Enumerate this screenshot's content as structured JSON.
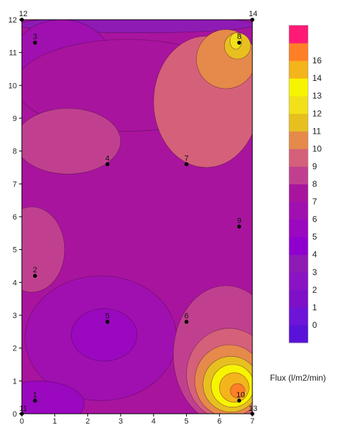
{
  "chart_data": {
    "type": "heatmap",
    "subtype": "filled-contour",
    "xlim": [
      0,
      7
    ],
    "ylim": [
      0,
      12
    ],
    "x_ticks": [
      0,
      1,
      2,
      3,
      4,
      5,
      6,
      7
    ],
    "y_ticks": [
      0,
      1,
      2,
      3,
      4,
      5,
      6,
      7,
      8,
      9,
      10,
      11,
      12
    ],
    "x_tick_labels": [
      "0",
      "1",
      "2",
      "3",
      "4",
      "5",
      "6",
      "7"
    ],
    "y_tick_labels": [
      "0",
      "1",
      "2",
      "3",
      "4",
      "5",
      "6",
      "7",
      "8",
      "9",
      "10",
      "11",
      "12"
    ],
    "points": [
      {
        "label": "1",
        "x": 0.4,
        "y": 0.4
      },
      {
        "label": "2",
        "x": 0.4,
        "y": 4.2
      },
      {
        "label": "3",
        "x": 0.4,
        "y": 11.3
      },
      {
        "label": "4",
        "x": 2.6,
        "y": 7.6
      },
      {
        "label": "5",
        "x": 2.6,
        "y": 2.8
      },
      {
        "label": "6",
        "x": 5.0,
        "y": 2.8
      },
      {
        "label": "7",
        "x": 5.0,
        "y": 7.6
      },
      {
        "label": "8",
        "x": 6.6,
        "y": 11.3
      },
      {
        "label": "9",
        "x": 6.6,
        "y": 5.7
      },
      {
        "label": "10",
        "x": 6.6,
        "y": 0.4
      },
      {
        "label": "11",
        "x": 0.0,
        "y": 0.0
      },
      {
        "label": "12",
        "x": 0.0,
        "y": 12.0
      },
      {
        "label": "13",
        "x": 7.0,
        "y": 0.0
      },
      {
        "label": "14",
        "x": 7.0,
        "y": 12.0
      }
    ],
    "colorbar": {
      "title": "Flux (l/m2/min)",
      "levels": [
        "0",
        "1",
        "2",
        "3",
        "4",
        "5",
        "6",
        "7",
        "8",
        "9",
        "10",
        "11",
        "12",
        "13",
        "14",
        "16"
      ],
      "colors": [
        "#5a12d8",
        "#6d14d8",
        "#7e10c8",
        "#8a14c4",
        "#8e1bb4",
        "#8f00cf",
        "#9a08bf",
        "#a010b0",
        "#a8149e",
        "#c0408f",
        "#d5607a",
        "#e58a4a",
        "#e7c020",
        "#f2e11a",
        "#f7f400",
        "#f4b41c",
        "#ff7f27",
        "#ff1a76"
      ]
    },
    "regions": [
      {
        "level": "7",
        "shape": "background"
      },
      {
        "level": "3",
        "shape": "top-edge band",
        "cx": 3.5,
        "cy": 11.85,
        "rx": 3.6,
        "ry": 0.25
      },
      {
        "level": "6",
        "shape": "top-left lobe",
        "cx": 1.2,
        "cy": 10.8,
        "rx": 1.5,
        "ry": 1.2
      },
      {
        "level": "7",
        "shape": "upper band",
        "cx": 3.2,
        "cy": 10.0,
        "rx": 3.4,
        "ry": 1.4
      },
      {
        "level": "8",
        "shape": "center-left blob",
        "cx": 1.4,
        "cy": 8.3,
        "rx": 1.6,
        "ry": 1.0
      },
      {
        "level": "9",
        "shape": "upper-right blob",
        "cx": 5.6,
        "cy": 9.5,
        "rx": 1.6,
        "ry": 2.0
      },
      {
        "level": "10",
        "shape": "upper-right core",
        "cx": 6.2,
        "cy": 10.8,
        "rx": 0.9,
        "ry": 0.9
      },
      {
        "level": "11",
        "shape": "upper-right inner",
        "cx": 6.55,
        "cy": 11.2,
        "rx": 0.4,
        "ry": 0.4
      },
      {
        "level": "12",
        "shape": "upper-right peak",
        "cx": 6.5,
        "cy": 11.35,
        "rx": 0.18,
        "ry": 0.25
      },
      {
        "level": "8",
        "shape": "left blob",
        "cx": 0.3,
        "cy": 5.0,
        "rx": 1.0,
        "ry": 1.3
      },
      {
        "level": "6",
        "shape": "lower-left region",
        "cx": 2.4,
        "cy": 2.3,
        "rx": 2.3,
        "ry": 1.9
      },
      {
        "level": "5",
        "shape": "low around point 5",
        "cx": 2.5,
        "cy": 2.4,
        "rx": 1.0,
        "ry": 0.8
      },
      {
        "level": "5",
        "shape": "bottom-left corner",
        "cx": 0.5,
        "cy": 0.3,
        "rx": 1.4,
        "ry": 0.7
      },
      {
        "level": "8",
        "shape": "lower-right region",
        "cx": 6.2,
        "cy": 1.8,
        "rx": 1.6,
        "ry": 2.1
      },
      {
        "level": "9",
        "shape": "lower-right ring",
        "cx": 6.3,
        "cy": 1.2,
        "rx": 1.3,
        "ry": 1.4
      },
      {
        "level": "10",
        "shape": "lower-right ring",
        "cx": 6.3,
        "cy": 1.0,
        "rx": 1.05,
        "ry": 1.1
      },
      {
        "level": "11",
        "shape": "lower-right ring",
        "cx": 6.35,
        "cy": 0.9,
        "rx": 0.85,
        "ry": 0.85
      },
      {
        "level": "13",
        "shape": "lower-right ring",
        "cx": 6.4,
        "cy": 0.85,
        "rx": 0.65,
        "ry": 0.65
      },
      {
        "level": "14",
        "shape": "lower-right ring",
        "cx": 6.45,
        "cy": 0.8,
        "rx": 0.45,
        "ry": 0.45
      },
      {
        "level": "16",
        "shape": "lower-right peak",
        "cx": 6.55,
        "cy": 0.7,
        "rx": 0.22,
        "ry": 0.22
      }
    ]
  }
}
